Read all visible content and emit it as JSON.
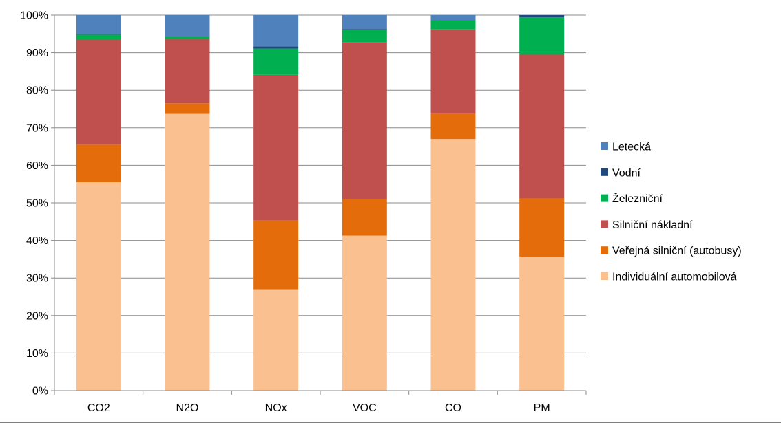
{
  "chart_data": {
    "type": "bar",
    "stacked": true,
    "percent": true,
    "categories": [
      "CO2",
      "N2O",
      "NOx",
      "VOC",
      "CO",
      "PM"
    ],
    "series": [
      {
        "name": "Individuální automobilová",
        "color": "#FAC090",
        "values": [
          55.5,
          73.7,
          27.0,
          41.3,
          67.0,
          35.7
        ]
      },
      {
        "name": "Veřejná silniční (autobusy)",
        "color": "#E46C0A",
        "values": [
          10.0,
          2.8,
          18.3,
          9.7,
          6.8,
          15.5
        ]
      },
      {
        "name": "Silniční nákladní",
        "color": "#C0504D",
        "values": [
          28.0,
          17.2,
          38.8,
          41.8,
          22.4,
          38.4
        ]
      },
      {
        "name": "Železniční",
        "color": "#00B050",
        "values": [
          1.3,
          0.6,
          7.0,
          3.2,
          2.4,
          9.8
        ]
      },
      {
        "name": "Vodní",
        "color": "#1F497D",
        "values": [
          0.2,
          0.1,
          0.6,
          0.3,
          0.1,
          0.6
        ]
      },
      {
        "name": "Letecká",
        "color": "#4F81BD",
        "values": [
          5.0,
          5.6,
          8.3,
          3.7,
          1.3,
          0.0
        ]
      }
    ],
    "ylim": [
      0,
      100
    ],
    "yticks": [
      "0%",
      "10%",
      "20%",
      "30%",
      "40%",
      "50%",
      "60%",
      "70%",
      "80%",
      "90%",
      "100%"
    ],
    "grid": true,
    "legend": "right",
    "legend_order": [
      5,
      4,
      3,
      2,
      1,
      0
    ]
  }
}
